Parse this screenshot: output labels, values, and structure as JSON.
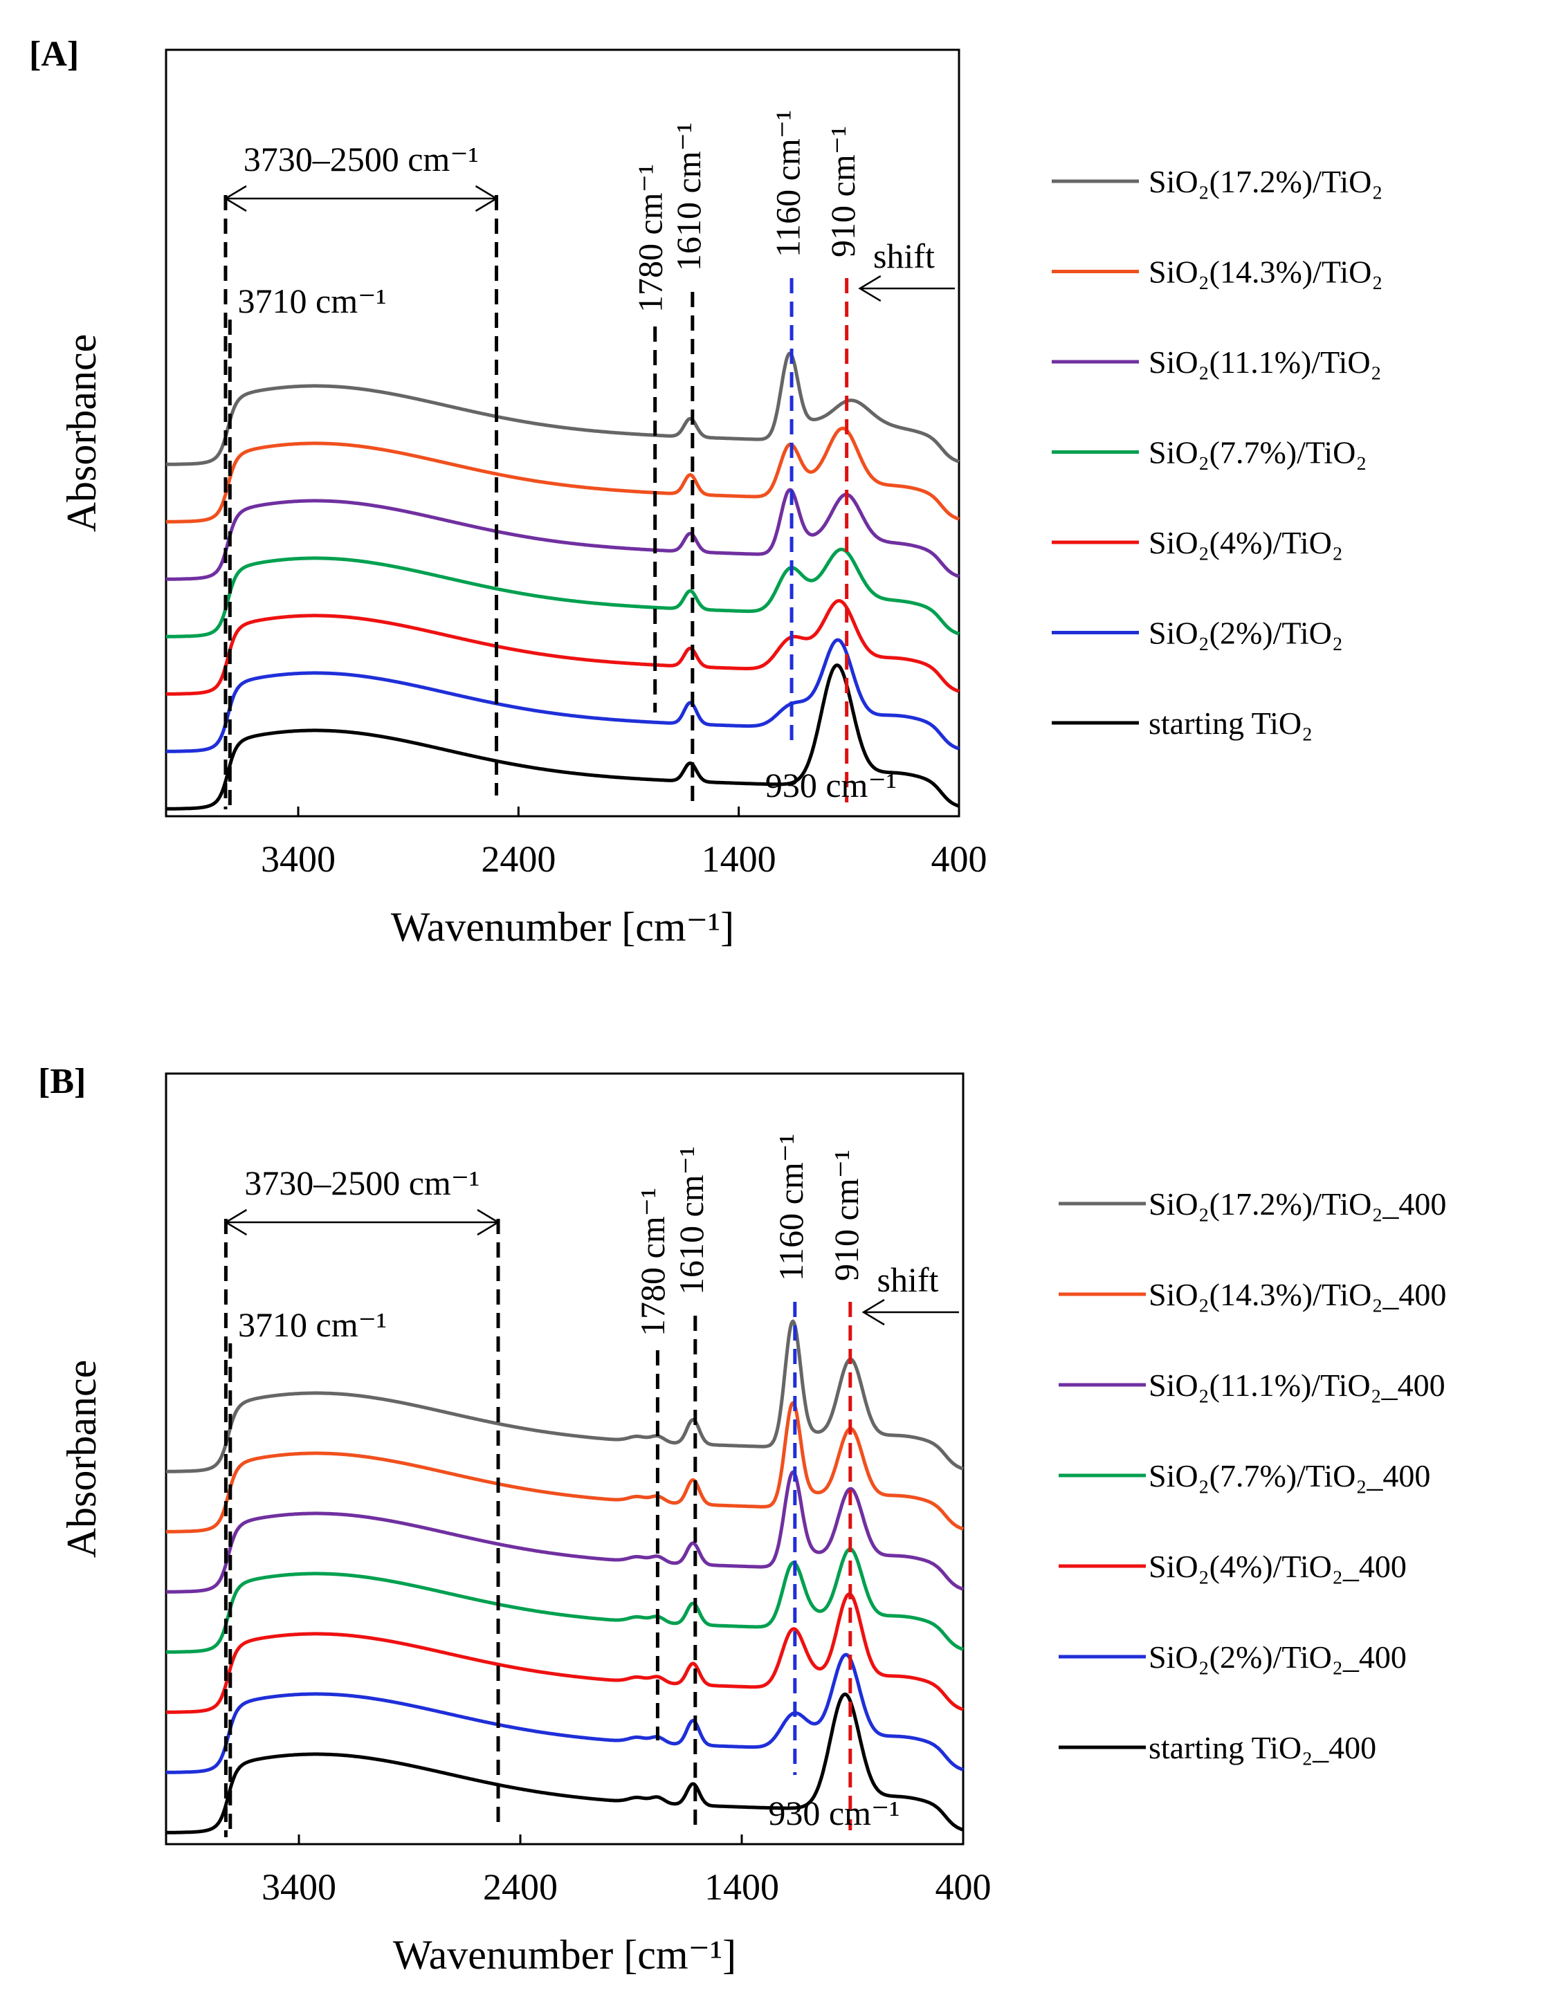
{
  "chart_data": [
    {
      "panel_label": "[A]",
      "type": "line",
      "xlabel": "Wavenumber [cm⁻¹]",
      "ylabel": "Absorbance",
      "xlim": [
        4000,
        400
      ],
      "x_ticks": [
        {
          "value": 3400,
          "label": "3400"
        },
        {
          "value": 2400,
          "label": "2400"
        },
        {
          "value": 1400,
          "label": "1400"
        },
        {
          "value": 400,
          "label": "400"
        }
      ],
      "annotations": {
        "range_label": "3730–2500  cm⁻¹",
        "label_3710": "3710  cm⁻¹",
        "label_1780": "1780 cm⁻¹",
        "label_1610": "1610 cm⁻¹",
        "label_1160": "1160 cm⁻¹",
        "label_910": "910 cm⁻¹",
        "label_930": "930 cm⁻¹",
        "label_shift": "shift"
      },
      "series": [
        {
          "name": "SiO₂(17.2%)/TiO₂",
          "color": "#666666",
          "h1610": 0.3,
          "h1160": 1.35,
          "s1160": 38,
          "h930": 0.55,
          "s930": 90,
          "pos930": 900
        },
        {
          "name": "SiO₂(14.3%)/TiO₂",
          "color": "#f0501e",
          "h1610": 0.32,
          "h1160": 0.8,
          "s1160": 45,
          "h930": 1.05,
          "s930": 70,
          "pos930": 930
        },
        {
          "name": "SiO₂(11.1%)/TiO₂",
          "color": "#7030a0",
          "h1610": 0.3,
          "h1160": 1.0,
          "s1160": 40,
          "h930": 0.9,
          "s930": 70,
          "pos930": 915
        },
        {
          "name": "SiO₂(7.7%)/TiO₂",
          "color": "#00a050",
          "h1610": 0.3,
          "h1160": 0.65,
          "s1160": 55,
          "h930": 0.95,
          "s930": 75,
          "pos930": 935
        },
        {
          "name": "SiO₂(4%)/TiO₂",
          "color": "#ee1111",
          "h1610": 0.3,
          "h1160": 0.45,
          "s1160": 60,
          "h930": 1.05,
          "s930": 70,
          "pos930": 945
        },
        {
          "name": "SiO₂(2%)/TiO₂",
          "color": "#1f2fd8",
          "h1610": 0.35,
          "h1160": 0.3,
          "s1160": 60,
          "h930": 1.35,
          "s930": 65,
          "pos930": 950
        },
        {
          "name": "starting  TiO₂",
          "color": "#000000",
          "h1610": 0.3,
          "h1160": 0.0,
          "s1160": 60,
          "h930": 1.9,
          "s930": 70,
          "pos930": 955
        }
      ]
    },
    {
      "panel_label": "[B]",
      "type": "line",
      "xlabel": "Wavenumber [cm⁻¹]",
      "ylabel": "Absorbance",
      "xlim": [
        4000,
        400
      ],
      "x_ticks": [
        {
          "value": 3400,
          "label": "3400"
        },
        {
          "value": 2400,
          "label": "2400"
        },
        {
          "value": 1400,
          "label": "1400"
        },
        {
          "value": 400,
          "label": "400"
        }
      ],
      "annotations": {
        "range_label": "3730–2500  cm⁻¹",
        "label_3710": "3710  cm⁻¹",
        "label_1780": "1780 cm⁻¹",
        "label_1610": "1610 cm⁻¹",
        "label_1160": "1160 cm⁻¹",
        "label_910": "910 cm⁻¹",
        "label_930": "930 cm⁻¹",
        "label_shift": "shift"
      },
      "series": [
        {
          "name": "SiO₂(17.2%)/TiO₂_400",
          "color": "#666666",
          "h1610": 0.4,
          "h1160": 2.0,
          "s1160": 35,
          "h930": 1.35,
          "s930": 55,
          "pos930": 910
        },
        {
          "name": "SiO₂(14.3%)/TiO₂_400",
          "color": "#f0501e",
          "h1610": 0.4,
          "h1160": 1.65,
          "s1160": 35,
          "h930": 1.2,
          "s930": 55,
          "pos930": 910
        },
        {
          "name": "SiO₂(11.1%)/TiO₂_400",
          "color": "#7030a0",
          "h1610": 0.35,
          "h1160": 1.5,
          "s1160": 38,
          "h930": 1.2,
          "s930": 55,
          "pos930": 910
        },
        {
          "name": "SiO₂(7.7%)/TiO₂_400",
          "color": "#00a050",
          "h1610": 0.35,
          "h1160": 1.0,
          "s1160": 45,
          "h930": 1.2,
          "s930": 55,
          "pos930": 912
        },
        {
          "name": "SiO₂(4%)/TiO₂_400",
          "color": "#ee1111",
          "h1610": 0.35,
          "h1160": 0.9,
          "s1160": 50,
          "h930": 1.45,
          "s930": 55,
          "pos930": 915
        },
        {
          "name": "SiO₂(2%)/TiO₂_400",
          "color": "#1f2fd8",
          "h1610": 0.4,
          "h1160": 0.5,
          "s1160": 55,
          "h930": 1.45,
          "s930": 60,
          "pos930": 930
        },
        {
          "name": "starting  TiO₂_400",
          "color": "#000000",
          "h1610": 0.35,
          "h1160": 0.0,
          "s1160": 60,
          "h930": 1.8,
          "s930": 65,
          "pos930": 935
        }
      ]
    }
  ]
}
